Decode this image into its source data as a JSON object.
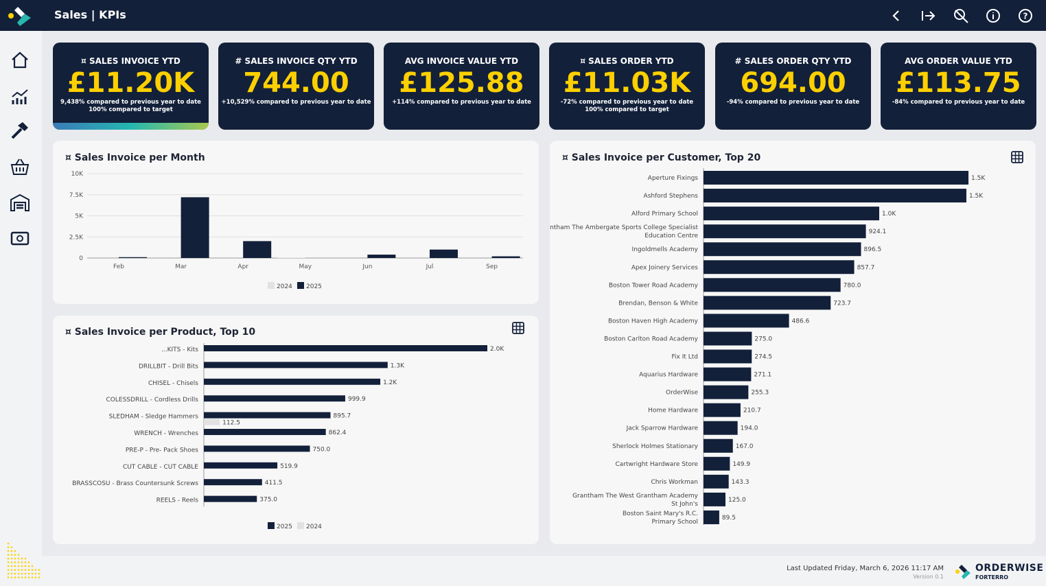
{
  "header": {
    "title": "Sales | KPIs",
    "icons": [
      "back-icon",
      "exit-icon",
      "search-icon",
      "info-icon",
      "help-icon"
    ]
  },
  "sidebar": {
    "icons": [
      "home-icon",
      "chart-icon",
      "tools-icon",
      "basket-icon",
      "warehouse-icon",
      "money-icon"
    ]
  },
  "kpis": [
    {
      "title": "¤ SALES INVOICE YTD",
      "value": "£11.20K",
      "sub1": "9,438% compared to previous year to date",
      "sub2": "100% compared to target"
    },
    {
      "title": "# SALES INVOICE QTY YTD",
      "value": "744.00",
      "sub1": "+10,529% compared to previous year to date",
      "sub2": ""
    },
    {
      "title": "AVG INVOICE VALUE YTD",
      "value": "£125.88",
      "sub1": "+114% compared to previous year to date",
      "sub2": ""
    },
    {
      "title": "¤ SALES ORDER YTD",
      "value": "£11.03K",
      "sub1": "-72% compared to previous year to date",
      "sub2": "100% compared to target"
    },
    {
      "title": "# SALES ORDER QTY YTD",
      "value": "694.00",
      "sub1": "-94% compared to previous year to date",
      "sub2": ""
    },
    {
      "title": "AVG ORDER VALUE YTD",
      "value": "£113.75",
      "sub1": "-84% compared to previous year to date",
      "sub2": ""
    }
  ],
  "colors": {
    "navy": "#13203a",
    "yellow": "#fcd000",
    "light": "#e2e2e2"
  },
  "chart_data": [
    {
      "type": "bar",
      "title": "¤ Sales Invoice per Month",
      "categories": [
        "Feb",
        "Mar",
        "Apr",
        "May",
        "Jun",
        "Jul",
        "Sep"
      ],
      "series": [
        {
          "name": "2024",
          "values": [
            0,
            0,
            0,
            60,
            0,
            0,
            0
          ]
        },
        {
          "name": "2025",
          "values": [
            100,
            7200,
            2000,
            0,
            400,
            1000,
            200
          ]
        }
      ],
      "yticks": [
        "0",
        "2.5K",
        "5K",
        "7.5K",
        "10K"
      ],
      "ylim": [
        0,
        10000
      ],
      "legend": "bottom",
      "grid": true
    },
    {
      "type": "bar",
      "orientation": "horizontal",
      "title": "¤ Sales Invoice per Product, Top 10",
      "categories": [
        "...KITS - Kits",
        "DRILLBIT - Drill Bits",
        "CHISEL - Chisels",
        "COLESSDRILL - Cordless Drills",
        "SLEDHAM - Sledge Hammers",
        "WRENCH - Wrenches",
        "PRE-P - Pre- Pack Shoes",
        "CUT CABLE - CUT CABLE",
        "BRASSCOSU - Brass Countersunk Screws",
        "REELS - Reels"
      ],
      "series": [
        {
          "name": "2025",
          "values": [
            2005,
            1300,
            1248,
            999.9,
            895.7,
            862.4,
            750.0,
            519.9,
            411.5,
            375.0
          ],
          "labels": [
            "2.0K",
            "1.3K",
            "1.2K",
            "999.9",
            "895.7",
            "862.4",
            "750.0",
            "519.9",
            "411.5",
            "375.0"
          ]
        },
        {
          "name": "2024",
          "values": [
            0,
            0,
            0,
            0,
            112.5,
            0,
            0,
            0,
            0,
            0
          ],
          "labels": [
            "",
            "",
            "",
            "",
            "112.5",
            "",
            "",
            "",
            "",
            ""
          ]
        }
      ],
      "legend": "bottom"
    },
    {
      "type": "bar",
      "orientation": "horizontal",
      "title": "¤ Sales Invoice per Customer, Top 20",
      "categories": [
        "Aperture Fixings",
        "Ashford Stephens",
        "Alford Primary School",
        "Grantham The Ambergate Sports College Specialist Education Centre",
        "Ingoldmells Academy",
        "Apex Joinery Services",
        "Boston Tower Road Academy",
        "Brendan, Benson & White",
        "Boston Haven High Academy",
        "Boston Carlton Road Academy",
        "Fix It Ltd",
        "Aquarius Hardware",
        "OrderWise",
        "Home Hardware",
        "Jack Sparrow Hardware",
        "Sherlock Holmes Stationary",
        "Cartwright Hardware Store",
        "Chris Workman",
        "Grantham The West Grantham Academy St John's",
        "Boston Saint Mary's R.C. Primary School"
      ],
      "values": [
        1508,
        1496,
        1000,
        924.1,
        896.5,
        857.7,
        780.0,
        723.7,
        486.6,
        275.0,
        274.5,
        271.1,
        255.3,
        210.7,
        194.0,
        167.0,
        149.9,
        143.3,
        125.0,
        89.5
      ],
      "labels": [
        "1.5K",
        "1.5K",
        "1.0K",
        "924.1",
        "896.5",
        "857.7",
        "780.0",
        "723.7",
        "486.6",
        "275.0",
        "274.5",
        "271.1",
        "255.3",
        "210.7",
        "194.0",
        "167.0",
        "149.9",
        "143.3",
        "125.0",
        "89.5"
      ]
    }
  ],
  "footer": {
    "updated": "Last Updated Friday, March 6, 2026 11:17 AM",
    "version": "Version 0.1",
    "brand": "ORDERWISE",
    "brand_sub": "FORTERRO"
  }
}
